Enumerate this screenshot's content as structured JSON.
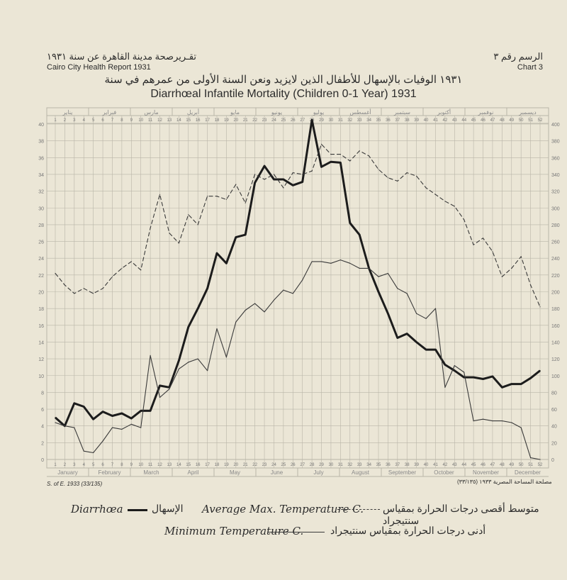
{
  "header": {
    "arabic_left": "تقـريرصحة مدينة القاهرة عن سنة ١٩٣١",
    "report_en": "Cairo City Health Report 1931",
    "arabic_right": "الرسم رقم ٣",
    "chart_no": "Chart 3",
    "title_ar": "١٩٣١ الوفيات بالإسهال للأطفال الذين لايزيد ونعن السنة الأولى من عمرهم في سنة",
    "title_en": "Diarrhœal Infantile Mortality (Children 0-1 Year) 1931"
  },
  "footer": {
    "ref_left": "S. of E. 1933 (33/135)",
    "ref_right": "(٣٣/١٣٥) مصلحة المساحة المصرية ١٩٣٣"
  },
  "legend": {
    "diarrhoea_en": "Diarrhœa",
    "diarrhoea_ar": "الإسهال",
    "avg_max_en": "Average Max. Temperature C.",
    "avg_max_ar": "متوسط أقصى درجات الحرارة بمقياس سنتيجراد",
    "min_en": "Minimum Temperature C.",
    "min_ar": "أدنى درجات الحرارة بمقياس سنتيجراد"
  },
  "colors": {
    "grid": "#b9b5a8",
    "diarrhoea": "#1c1c1c",
    "maxline": "#3a3a3a",
    "minline": "#3a3a3a",
    "text": "#2b2b2b"
  },
  "chart_data": {
    "type": "line",
    "title": "Diarrhœal Infantile Mortality (Children 0-1 Year) 1931",
    "x": [
      1,
      2,
      3,
      4,
      5,
      6,
      7,
      8,
      9,
      10,
      11,
      12,
      13,
      14,
      15,
      16,
      17,
      18,
      19,
      20,
      21,
      22,
      23,
      24,
      25,
      26,
      27,
      28,
      29,
      30,
      31,
      32,
      33,
      34,
      35,
      36,
      37,
      38,
      39,
      40,
      41,
      42,
      43,
      44,
      45,
      46,
      47,
      48,
      49,
      50,
      51,
      52
    ],
    "x_ticks": [
      "1",
      "2",
      "3",
      "4",
      "5",
      "6",
      "7",
      "8",
      "9",
      "10",
      "11",
      "12",
      "13",
      "14",
      "15",
      "16",
      "17",
      "18",
      "19",
      "20",
      "21",
      "22",
      "23",
      "24",
      "25",
      "26",
      "27",
      "28",
      "29",
      "30",
      "31",
      "32",
      "33",
      "34",
      "35",
      "36",
      "37",
      "38",
      "39",
      "40",
      "41",
      "42",
      "43",
      "44",
      "45",
      "46",
      "47",
      "48",
      "49",
      "50",
      "51",
      "52"
    ],
    "months_en": [
      "January",
      "February",
      "March",
      "April",
      "May",
      "June",
      "July",
      "August",
      "September",
      "October",
      "November",
      "December"
    ],
    "months_ar": [
      "يناير",
      "فبراير",
      "مارس",
      "أبريل",
      "مايو",
      "يونيو",
      "يوليو",
      "أغسطس",
      "سبتمبر",
      "أكتوبر",
      "نوفمبر",
      "ديسمبر"
    ],
    "y_left_ticks": [
      "0",
      "2",
      "4",
      "6",
      "8",
      "10",
      "12",
      "14",
      "16",
      "18",
      "20",
      "22",
      "24",
      "26",
      "28",
      "30",
      "32",
      "34",
      "36",
      "38",
      "40"
    ],
    "y_right_ticks": [
      "0",
      "20",
      "40",
      "60",
      "80",
      "100",
      "120",
      "140",
      "160",
      "180",
      "200",
      "220",
      "240",
      "260",
      "280",
      "300",
      "320",
      "340",
      "360",
      "380",
      "400"
    ],
    "deaths_range": [
      0,
      400
    ],
    "temp_range": [
      0,
      40
    ],
    "series": [
      {
        "name": "Diarrhœa",
        "axis": "deaths",
        "style": "solid-thick",
        "values": [
          50,
          40,
          67,
          63,
          48,
          57,
          52,
          55,
          49,
          58,
          58,
          88,
          86,
          118,
          158,
          180,
          204,
          246,
          234,
          265,
          268,
          330,
          350,
          334,
          334,
          327,
          331,
          405,
          349,
          355,
          354,
          282,
          268,
          228,
          200,
          174,
          145,
          150,
          140,
          131,
          131,
          113,
          106,
          98,
          98,
          96,
          99,
          86,
          90,
          90,
          97,
          106
        ]
      },
      {
        "name": "Average Max. Temperature C.",
        "axis": "temp",
        "style": "dashed",
        "values": [
          22.2,
          20.8,
          19.8,
          20.4,
          19.8,
          20.4,
          21.8,
          22.8,
          23.6,
          22.6,
          27.6,
          31.6,
          27,
          25.8,
          29.2,
          28,
          31.4,
          31.4,
          31,
          32.8,
          30.6,
          34,
          33.4,
          34,
          32.4,
          34.2,
          34,
          34.4,
          37.6,
          36.4,
          36.4,
          35.6,
          36.8,
          36.2,
          34.6,
          33.6,
          33.2,
          34.2,
          33.8,
          32.4,
          31.6,
          30.8,
          30.2,
          28.6,
          25.6,
          26.4,
          24.8,
          21.8,
          22.8,
          24.2,
          20.8,
          18.2
        ]
      },
      {
        "name": "Minimum Temperature C.",
        "axis": "temp",
        "style": "solid-thin",
        "values": [
          4.4,
          4,
          3.8,
          1,
          0.8,
          2.2,
          3.8,
          3.6,
          4.2,
          3.8,
          12.4,
          7.4,
          8.4,
          10.8,
          11.6,
          12,
          10.6,
          15.6,
          12.2,
          16.4,
          17.8,
          18.6,
          17.6,
          19,
          20.2,
          19.8,
          21.4,
          23.6,
          23.6,
          23.4,
          23.8,
          23.4,
          22.8,
          22.8,
          21.8,
          22.2,
          20.4,
          19.8,
          17.4,
          16.8,
          18,
          8.6,
          11.2,
          10.4,
          4.6,
          4.8,
          4.6,
          4.6,
          4.4,
          3.8,
          0.2,
          0
        ]
      }
    ]
  }
}
